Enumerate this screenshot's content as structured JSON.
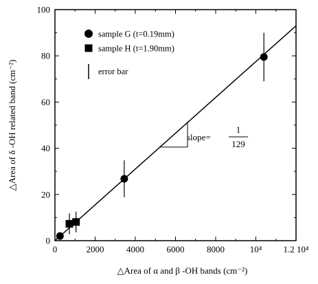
{
  "chart_data": {
    "type": "scatter",
    "xlabel": "△Area of α and β -OH bands (cm⁻²)",
    "ylabel": "△Area of δ -OH related band (cm⁻²)",
    "xlim": [
      0,
      12000
    ],
    "ylim": [
      0,
      100
    ],
    "x_ticks": [
      0,
      2000,
      4000,
      6000,
      8000,
      10000,
      12000
    ],
    "x_tick_labels": [
      "0",
      "2000",
      "4000",
      "6000",
      "8000",
      "10⁴",
      "1.2 10⁴"
    ],
    "y_ticks": [
      0,
      20,
      40,
      60,
      80,
      100
    ],
    "y_tick_labels": [
      "0",
      "20",
      "40",
      "60",
      "80",
      "100"
    ],
    "grid": false,
    "legend_position": "top-left",
    "series": [
      {
        "name": "sample G (t=0.19mm)",
        "marker": "circle",
        "points": [
          {
            "x": 250,
            "y": 2,
            "err": 1.5
          },
          {
            "x": 3450,
            "y": 26.8,
            "err": 8
          },
          {
            "x": 10400,
            "y": 79.5,
            "err": 10.5
          }
        ]
      },
      {
        "name": "sample H (t=1.90mm)",
        "marker": "square",
        "points": [
          {
            "x": 720,
            "y": 7.3,
            "err": 4.5
          },
          {
            "x": 1050,
            "y": 8.1,
            "err": 4.5
          }
        ]
      }
    ],
    "fit_line": {
      "x": [
        0,
        12000
      ],
      "y": [
        0,
        93
      ]
    },
    "error_bar_legend": "error bar",
    "slope_annotation": {
      "prefix": "slope=",
      "numerator": "1",
      "denominator": "129"
    },
    "slope_triangle": {
      "x": [
        5200,
        6600
      ],
      "y": [
        40.5,
        51.5
      ]
    }
  }
}
